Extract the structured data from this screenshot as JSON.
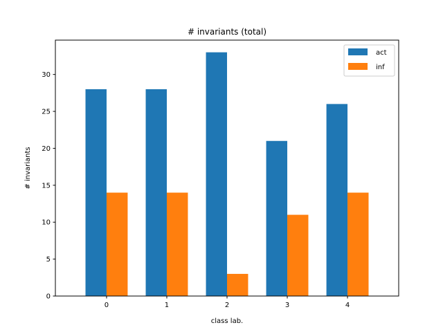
{
  "chart_data": {
    "type": "bar",
    "title": "# invariants (total)",
    "xlabel": "class lab.",
    "ylabel": "# invariants",
    "categories": [
      "0",
      "1",
      "2",
      "3",
      "4"
    ],
    "series": [
      {
        "name": "act",
        "values": [
          28,
          28,
          33,
          21,
          26
        ],
        "color": "#1f77b4"
      },
      {
        "name": "inf",
        "values": [
          14,
          14,
          3,
          11,
          14
        ],
        "color": "#ff7f0e"
      }
    ],
    "ylim": [
      0,
      34.65
    ],
    "yticks": [
      0,
      5,
      10,
      15,
      20,
      25,
      30
    ],
    "grid": false,
    "legend_position": "top-right"
  }
}
